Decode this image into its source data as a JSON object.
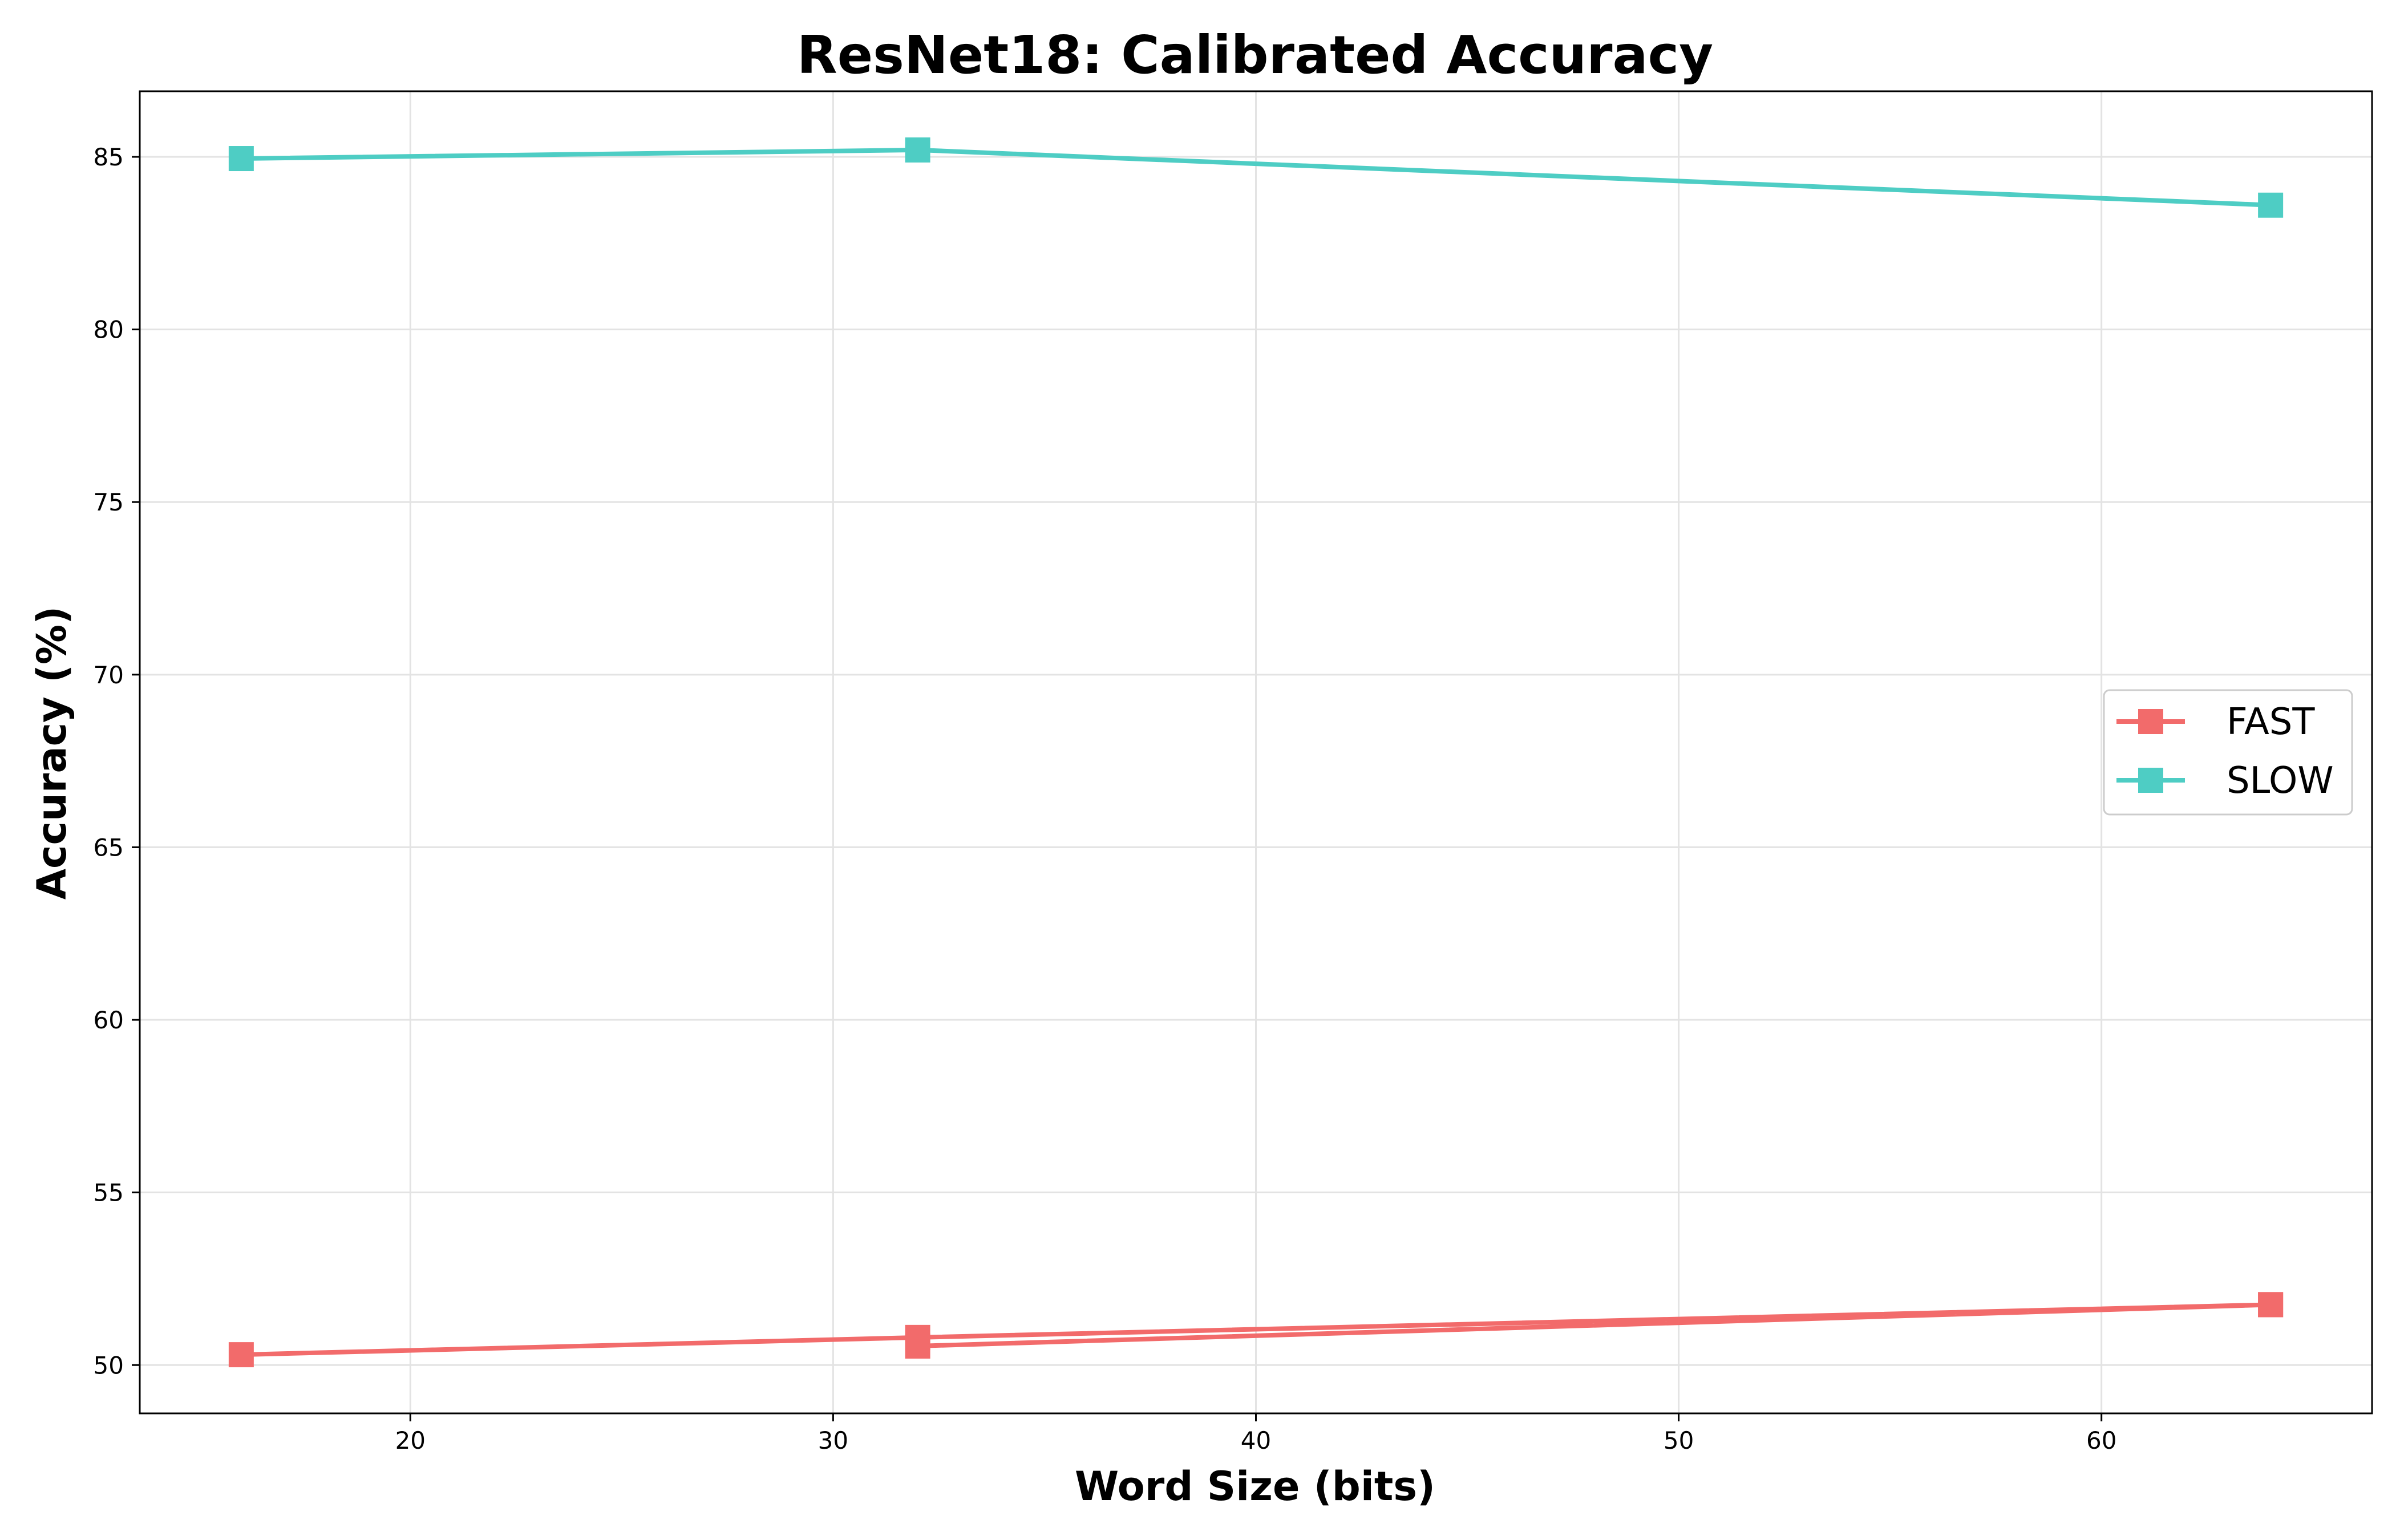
{
  "chart_data": {
    "type": "line",
    "title": "ResNet18: Calibrated Accuracy",
    "xlabel": "Word Size (bits)",
    "ylabel": "Accuracy (%)",
    "xlim": [
      13.6,
      66.4
    ],
    "ylim": [
      48.6,
      86.9
    ],
    "xticks": [
      20,
      30,
      40,
      50,
      60
    ],
    "yticks": [
      50,
      55,
      60,
      65,
      70,
      75,
      80,
      85
    ],
    "grid": true,
    "legend_position": "center-right",
    "marker": "square",
    "series": [
      {
        "name": "FAST",
        "color": "#f26b6b",
        "points": [
          [
            16,
            50.3
          ],
          [
            32,
            50.8
          ],
          [
            64,
            51.75
          ],
          [
            32,
            50.55
          ],
          [
            64,
            51.75
          ]
        ]
      },
      {
        "name": "SLOW",
        "color": "#4ecdc4",
        "points": [
          [
            16,
            84.95
          ],
          [
            32,
            85.2
          ],
          [
            64,
            83.6
          ]
        ]
      }
    ]
  }
}
